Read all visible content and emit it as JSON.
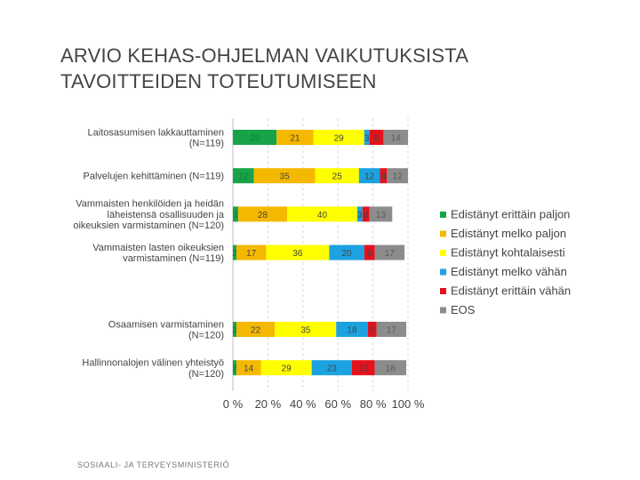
{
  "slide": {
    "title_line1": "ARVIO KEHAS-OHJELMAN VAIKUTUKSISTA",
    "title_line2": "TAVOITTEIDEN TOTEUTUMISEEN",
    "footer": "SOSIAALI- JA TERVEYSMINISTERIÖ"
  },
  "colors": {
    "Edistänyt erittäin paljon": "#18a34a",
    "Edistänyt melko paljon": "#f5b800",
    "Edistänyt kohtalaisesti": "#ffff00",
    "Edistänyt melko vähän": "#1ca2e0",
    "Edistänyt erittäin vähän": "#e3121c",
    "EOS": "#8c8c8c"
  },
  "chart_data": {
    "type": "bar",
    "orientation": "horizontal",
    "stacked": true,
    "percent_axis": true,
    "xlim": [
      0,
      100
    ],
    "xticks": [
      "0 %",
      "20 %",
      "40 %",
      "60 %",
      "80 %",
      "100 %"
    ],
    "legend_position": "right",
    "categories": [
      [
        "Laitosasumisen lakkauttaminen",
        "(N=119)"
      ],
      [
        "Palvelujen kehittäminen (N=119)"
      ],
      [
        "Vammaisten henkilöiden ja heidän",
        "läheistensä osallisuuden ja",
        "oikeuksien varmistaminen (N=120)"
      ],
      [
        "Vammaisten lasten oikeuksien",
        "varmistaminen (N=119)"
      ],
      [
        "Osaamisen varmistaminen",
        "(N=120)"
      ],
      [
        "Hallinnonalojen välinen yhteistyö",
        "(N=120)"
      ]
    ],
    "row_slots": [
      0,
      1,
      2,
      3,
      5,
      6
    ],
    "series": [
      {
        "name": "Edistänyt erittäin paljon",
        "values": [
          25,
          12,
          3,
          2,
          2,
          2
        ],
        "labels": [
          "25",
          "12",
          "3",
          "2",
          "2",
          "2"
        ]
      },
      {
        "name": "Edistänyt melko paljon",
        "values": [
          21,
          35,
          28,
          17,
          22,
          14
        ],
        "labels": [
          "21",
          "35",
          "28",
          "17",
          "22",
          "14"
        ]
      },
      {
        "name": "Edistänyt kohtalaisesti",
        "values": [
          29,
          25,
          40,
          36,
          35,
          29
        ],
        "labels": [
          "29",
          "25",
          "40",
          "36",
          "35",
          "29"
        ]
      },
      {
        "name": "Edistänyt melko vähän",
        "values": [
          3,
          12,
          3,
          20,
          18,
          23
        ],
        "labels": [
          "3",
          "12",
          "3",
          "20",
          "18",
          "23"
        ]
      },
      {
        "name": "Edistänyt erittäin vähän",
        "values": [
          8,
          4,
          4,
          6,
          5,
          13
        ],
        "labels": [
          "8",
          "4",
          "4",
          "6",
          "5",
          "13"
        ]
      },
      {
        "name": "EOS",
        "values": [
          14,
          12,
          13,
          17,
          17,
          18
        ],
        "labels": [
          "14",
          "12",
          "13",
          "17",
          "17",
          "18"
        ]
      }
    ]
  }
}
